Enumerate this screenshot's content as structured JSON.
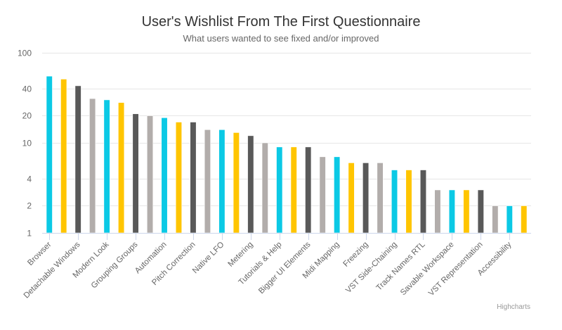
{
  "chart_data": {
    "type": "bar",
    "orientation": "vertical",
    "title": "User's Wishlist From The First Questionnaire",
    "subtitle": "What users wanted to see fixed and/or improved",
    "credit": "Highcharts",
    "xlabel": "",
    "ylabel": "",
    "yscale": "log",
    "ylim": [
      1,
      100
    ],
    "yticks": [
      1,
      2,
      4,
      10,
      20,
      40,
      100
    ],
    "ytick_labels": [
      "1",
      "2",
      "4",
      "10",
      "20",
      "40",
      "100"
    ],
    "grid": true,
    "legend": "none",
    "colors_cycle": [
      "#0bc9e5",
      "#ffc500",
      "#595959",
      "#b2adab"
    ],
    "category_label_step": 2,
    "visible_category_labels": [
      "Browser",
      "Detachable Windows",
      "Modern Look",
      "Grouping Groups",
      "Automation",
      "Pitch Correction",
      "Native LFO",
      "Metering",
      "Tutorials & Help",
      "Bigger UI Elements",
      "Midi Mapping",
      "Freezing",
      "VST Side-Chaining",
      "Track Names RTL",
      "Savable Workspace",
      "VST Representation",
      "Accessibility"
    ],
    "values": [
      55,
      51,
      43,
      31,
      30,
      28,
      21,
      20,
      19,
      17,
      17,
      14,
      14,
      13,
      12,
      10,
      9,
      9,
      9,
      7,
      7,
      6,
      6,
      6,
      5,
      5,
      5,
      3,
      3,
      3,
      3,
      2,
      2,
      2
    ]
  }
}
